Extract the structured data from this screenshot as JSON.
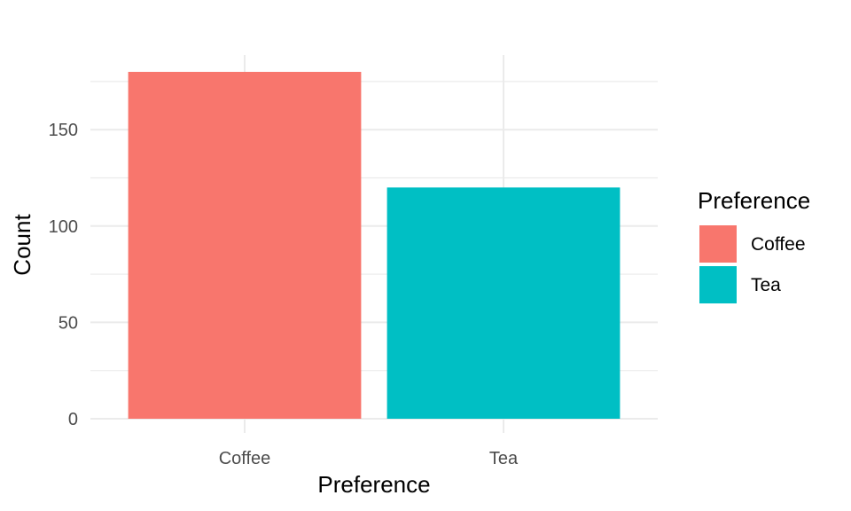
{
  "chart_data": {
    "type": "bar",
    "categories": [
      "Coffee",
      "Tea"
    ],
    "values": [
      180,
      120
    ],
    "colors": [
      "#F8766D",
      "#00BFC4"
    ],
    "xlabel": "Preference",
    "ylabel": "Count",
    "ylim": [
      0,
      180
    ],
    "yticks": [
      0,
      50,
      100,
      150
    ],
    "grid": true,
    "legend": {
      "title": "Preference",
      "placement": "right",
      "items": [
        {
          "label": "Coffee",
          "color": "#F8766D"
        },
        {
          "label": "Tea",
          "color": "#00BFC4"
        }
      ]
    }
  }
}
